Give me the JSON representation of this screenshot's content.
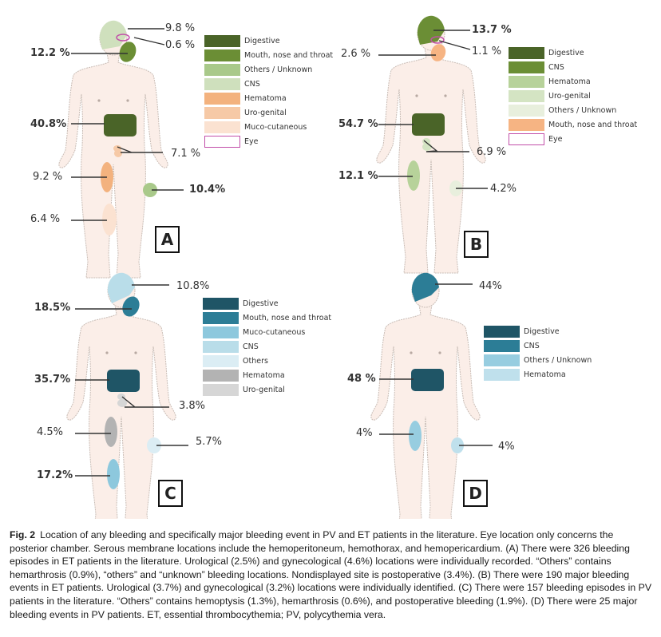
{
  "figure": {
    "label": "Fig. 2",
    "caption": "Location of any bleeding and specifically major bleeding event in PV and ET patients in the literature. Eye location only concerns the posterior chamber. Serous membrane locations include the hemoperitoneum, hemothorax, and hemopericardium. (A) There were 326 bleeding episodes in ET patients in the literature. Urological (2.5%) and gynecological (4.6%) locations were individually recorded. “Others” contains hemarthrosis (0.9%), “others” and “unknown” bleeding locations. Nondisplayed site is postoperative (3.4%). (B) There were 190 major bleeding events in ET patients. Urological (3.7%) and gynecological (3.2%) locations were individually identified. (C) There were 157 bleeding episodes in PV patients in the literature. “Others” contains hemoptysis (1.3%), hemarthrosis (0.6%), and postoperative bleeding (1.9%). (D) There were 25 major bleeding events in PV patients. ET, essential thrombocythemia; PV, polycythemia vera."
  },
  "panels": [
    {
      "id": "A",
      "letter": "A",
      "legend": [
        {
          "label": "Digestive",
          "color": "#4a6428"
        },
        {
          "label": "Mouth, nose and throat",
          "color": "#6b8e35"
        },
        {
          "label": "Others / Unknown",
          "color": "#a9c98a"
        },
        {
          "label": "CNS",
          "color": "#cfe0bd"
        },
        {
          "label": "Hematoma",
          "color": "#f3b27e"
        },
        {
          "label": "Uro-genital",
          "color": "#f6c9a6"
        },
        {
          "label": "Muco-cutaneous",
          "color": "#fbe2d1"
        },
        {
          "label": "Eye",
          "color": "#ffffff",
          "outline": "#c24fa9"
        }
      ],
      "sites": [
        {
          "site": "CNS",
          "value": "9.8 %",
          "bold": false
        },
        {
          "site": "Eye",
          "value": "0.6 %",
          "bold": false
        },
        {
          "site": "Mouth, nose and throat",
          "value": "12.2 %",
          "bold": true
        },
        {
          "site": "Digestive",
          "value": "40.8%",
          "bold": true
        },
        {
          "site": "Uro-genital",
          "value": "7.1 %",
          "bold": false
        },
        {
          "site": "Hematoma",
          "value": "9.2 %",
          "bold": false
        },
        {
          "site": "Others / Unknown",
          "value": "10.4%",
          "bold": true
        },
        {
          "site": "Muco-cutaneous",
          "value": "6.4 %",
          "bold": false
        }
      ]
    },
    {
      "id": "B",
      "letter": "B",
      "legend": [
        {
          "label": "Digestive",
          "color": "#4a6428"
        },
        {
          "label": "CNS",
          "color": "#6b8e35"
        },
        {
          "label": "Hematoma",
          "color": "#b7d29a"
        },
        {
          "label": "Uro-genital",
          "color": "#d4e4c3"
        },
        {
          "label": "Others / Unknown",
          "color": "#e8efdd"
        },
        {
          "label": "Mouth, nose and throat",
          "color": "#f6b483"
        },
        {
          "label": "Eye",
          "color": "#ffffff",
          "outline": "#c24fa9"
        }
      ],
      "sites": [
        {
          "site": "CNS",
          "value": "13.7 %",
          "bold": true
        },
        {
          "site": "Eye",
          "value": "1.1 %",
          "bold": false
        },
        {
          "site": "Mouth, nose and throat",
          "value": "2.6 %",
          "bold": false
        },
        {
          "site": "Digestive",
          "value": "54.7 %",
          "bold": true
        },
        {
          "site": "Uro-genital",
          "value": "6.9 %",
          "bold": false
        },
        {
          "site": "Hematoma",
          "value": "12.1 %",
          "bold": true
        },
        {
          "site": "Others / Unknown",
          "value": "4.2%",
          "bold": false
        }
      ]
    },
    {
      "id": "C",
      "letter": "C",
      "legend": [
        {
          "label": "Digestive",
          "color": "#1f5566"
        },
        {
          "label": "Mouth, nose and throat",
          "color": "#2c7d96"
        },
        {
          "label": "Muco-cutaneous",
          "color": "#8dc8dd"
        },
        {
          "label": "CNS",
          "color": "#b9dde9"
        },
        {
          "label": "Others",
          "color": "#dbedf4"
        },
        {
          "label": "Hematoma",
          "color": "#b3b3b3"
        },
        {
          "label": "Uro-genital",
          "color": "#d6d6d6"
        }
      ],
      "sites": [
        {
          "site": "CNS",
          "value": "10.8%",
          "bold": false
        },
        {
          "site": "Mouth, nose and throat",
          "value": "18.5%",
          "bold": true
        },
        {
          "site": "Digestive",
          "value": "35.7%",
          "bold": true
        },
        {
          "site": "Uro-genital",
          "value": "3.8%",
          "bold": false
        },
        {
          "site": "Hematoma",
          "value": "4.5%",
          "bold": false
        },
        {
          "site": "Others",
          "value": "5.7%",
          "bold": false
        },
        {
          "site": "Muco-cutaneous",
          "value": "17.2%",
          "bold": true
        }
      ]
    },
    {
      "id": "D",
      "letter": "D",
      "legend": [
        {
          "label": "Digestive",
          "color": "#1f5566"
        },
        {
          "label": "CNS",
          "color": "#2c7d96"
        },
        {
          "label": "Others / Unknown",
          "color": "#97cde0"
        },
        {
          "label": "Hematoma",
          "color": "#bfe0ec"
        }
      ],
      "sites": [
        {
          "site": "CNS",
          "value": "44%",
          "bold": false
        },
        {
          "site": "Digestive",
          "value": "48 %",
          "bold": true
        },
        {
          "site": "Others / Unknown",
          "value": "4%",
          "bold": false
        },
        {
          "site": "Hematoma",
          "value": "4%",
          "bold": false
        }
      ]
    }
  ],
  "colors": {
    "skin": "#fbeee8",
    "outline": "#c9bdb6",
    "leader_line": "#333333"
  }
}
